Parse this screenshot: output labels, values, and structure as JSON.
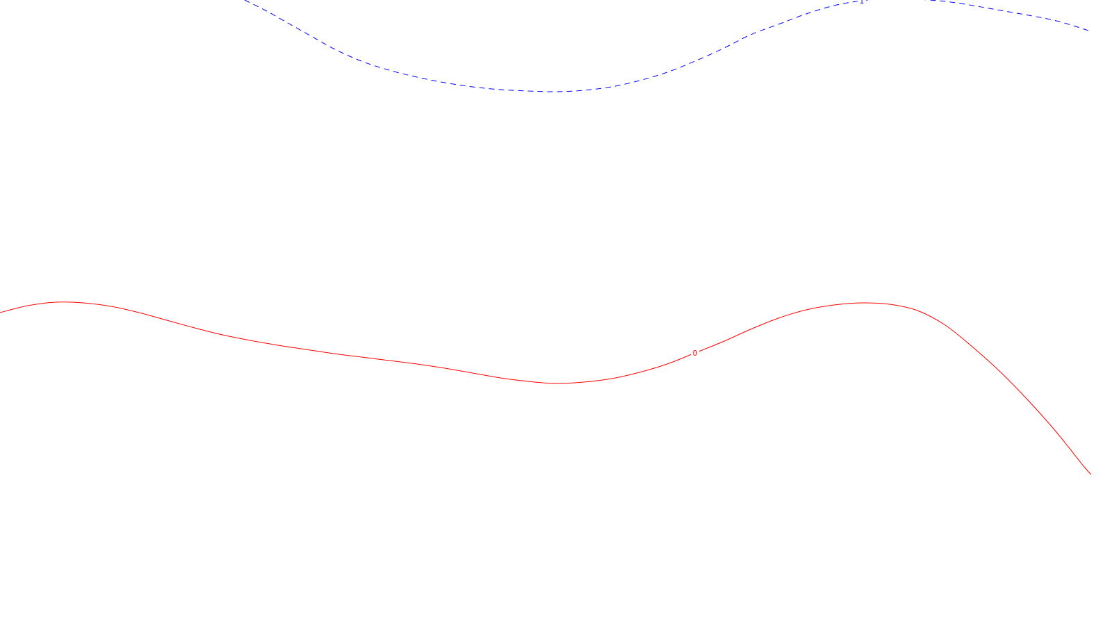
{
  "chart_data": {
    "type": "line",
    "title": "",
    "xlabel": "",
    "ylabel": "",
    "grid": false,
    "legend": "none",
    "series": [
      {
        "contour_label": "1",
        "color": "#0000ff",
        "style": "dashed",
        "points": [
          [
            352,
            0
          ],
          [
            382,
            15
          ],
          [
            414,
            33
          ],
          [
            446,
            51
          ],
          [
            480,
            70
          ],
          [
            520,
            88
          ],
          [
            560,
            101
          ],
          [
            600,
            111
          ],
          [
            640,
            119
          ],
          [
            680,
            125
          ],
          [
            720,
            129
          ],
          [
            760,
            131
          ],
          [
            800,
            132
          ],
          [
            840,
            130
          ],
          [
            880,
            125
          ],
          [
            920,
            116
          ],
          [
            960,
            104
          ],
          [
            1000,
            88
          ],
          [
            1040,
            70
          ],
          [
            1080,
            50
          ],
          [
            1120,
            35
          ],
          [
            1160,
            20
          ],
          [
            1200,
            8
          ],
          [
            1240,
            1
          ],
          [
            1280,
            -2
          ],
          [
            1320,
            -1
          ],
          [
            1360,
            2
          ],
          [
            1400,
            8
          ],
          [
            1440,
            15
          ],
          [
            1480,
            22
          ],
          [
            1520,
            30
          ],
          [
            1560,
            42
          ],
          [
            1570,
            46
          ]
        ],
        "label_at_index": 23
      },
      {
        "contour_label": "0",
        "color": "#ff0000",
        "style": "solid",
        "points": [
          [
            0,
            450
          ],
          [
            40,
            440
          ],
          [
            80,
            435
          ],
          [
            120,
            436
          ],
          [
            160,
            441
          ],
          [
            200,
            450
          ],
          [
            240,
            461
          ],
          [
            280,
            472
          ],
          [
            320,
            482
          ],
          [
            360,
            490
          ],
          [
            400,
            497
          ],
          [
            440,
            503
          ],
          [
            480,
            509
          ],
          [
            520,
            514
          ],
          [
            560,
            519
          ],
          [
            600,
            524
          ],
          [
            640,
            530
          ],
          [
            680,
            537
          ],
          [
            720,
            544
          ],
          [
            760,
            549
          ],
          [
            800,
            552
          ],
          [
            840,
            550
          ],
          [
            880,
            545
          ],
          [
            920,
            536
          ],
          [
            960,
            524
          ],
          [
            1000,
            508
          ],
          [
            1040,
            492
          ],
          [
            1080,
            474
          ],
          [
            1120,
            458
          ],
          [
            1160,
            446
          ],
          [
            1200,
            439
          ],
          [
            1240,
            436
          ],
          [
            1280,
            438
          ],
          [
            1320,
            447
          ],
          [
            1360,
            468
          ],
          [
            1400,
            500
          ],
          [
            1440,
            536
          ],
          [
            1480,
            577
          ],
          [
            1520,
            622
          ],
          [
            1560,
            672
          ],
          [
            1570,
            683
          ]
        ],
        "label_at_index": 25
      }
    ]
  }
}
